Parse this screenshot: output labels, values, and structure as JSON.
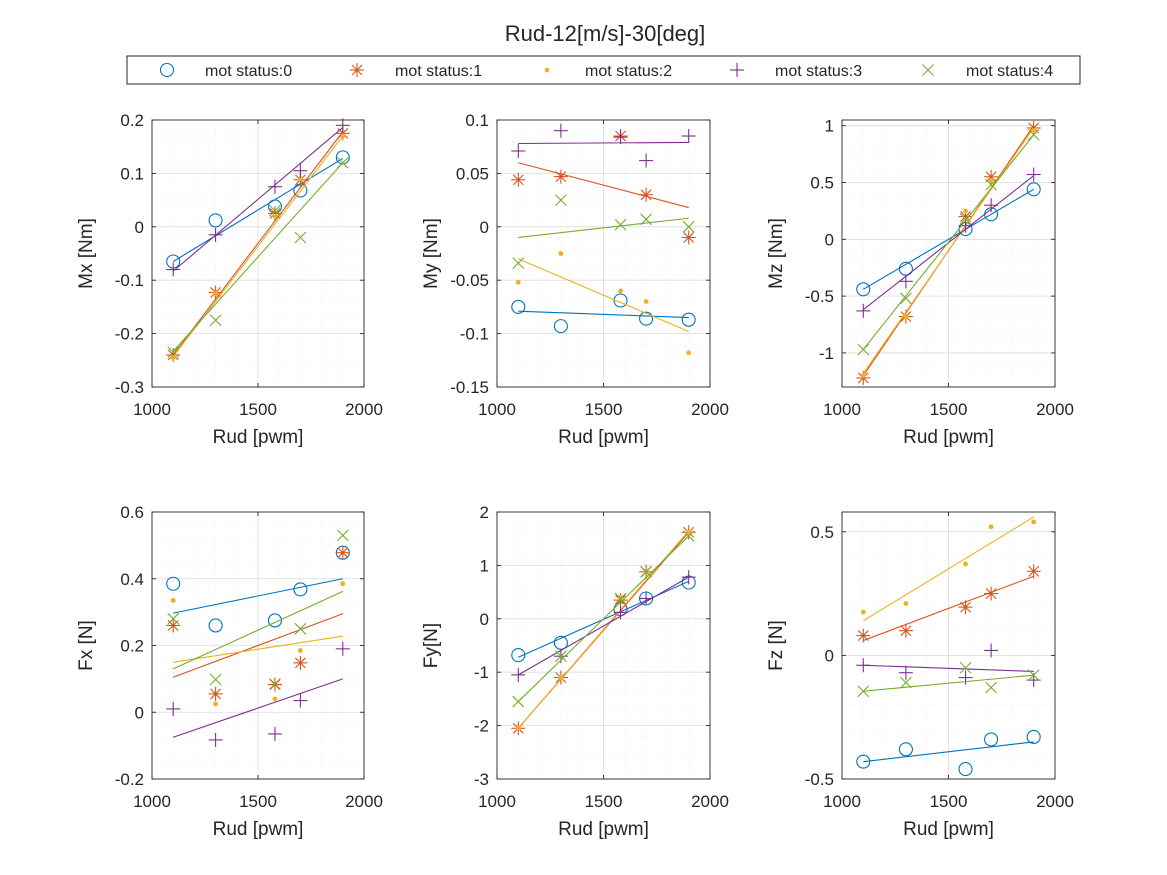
{
  "figure": {
    "title": "Rud-12[m/s]-30[deg]"
  },
  "series_styles": [
    {
      "name": "mot status:0",
      "color": "#0072BD",
      "marker": "circle"
    },
    {
      "name": "mot status:1",
      "color": "#D95319",
      "marker": "asterisk"
    },
    {
      "name": "mot status:2",
      "color": "#EDB120",
      "marker": "dot"
    },
    {
      "name": "mot status:3",
      "color": "#7E2F8E",
      "marker": "plus"
    },
    {
      "name": "mot status:4",
      "color": "#77AC30",
      "marker": "x"
    }
  ],
  "chart_data": [
    {
      "type": "scatter",
      "xlabel": "Rud [pwm]",
      "ylabel": "Mx [Nm]",
      "xlim": [
        1000,
        2000
      ],
      "ylim": [
        -0.3,
        0.2
      ],
      "xticks": [
        1000,
        1500,
        2000
      ],
      "yticks": [
        -0.3,
        -0.2,
        -0.1,
        0,
        0.1,
        0.2
      ],
      "grid": "on, with minor grid",
      "series": [
        {
          "name": "mot status:0",
          "x": [
            1100,
            1300,
            1580,
            1700,
            1900
          ],
          "y": [
            -0.065,
            0.012,
            0.038,
            0.068,
            0.13
          ],
          "fit": [
            [
              1100,
              -0.065
            ],
            [
              1900,
              0.128
            ]
          ]
        },
        {
          "name": "mot status:1",
          "x": [
            1100,
            1300,
            1580,
            1700,
            1900
          ],
          "y": [
            -0.24,
            -0.123,
            0.025,
            0.088,
            0.175
          ],
          "fit": [
            [
              1100,
              -0.24
            ],
            [
              1900,
              0.178
            ]
          ]
        },
        {
          "name": "mot status:2",
          "x": [
            1100,
            1300,
            1580,
            1700,
            1900
          ],
          "y": [
            -0.245,
            -0.125,
            0.02,
            0.09,
            0.17
          ],
          "fit": [
            [
              1100,
              -0.243
            ],
            [
              1900,
              0.17
            ]
          ]
        },
        {
          "name": "mot status:3",
          "x": [
            1100,
            1300,
            1580,
            1700,
            1900
          ],
          "y": [
            -0.08,
            -0.015,
            0.075,
            0.105,
            0.19
          ],
          "fit": [
            [
              1100,
              -0.083
            ],
            [
              1900,
              0.186
            ]
          ]
        },
        {
          "name": "mot status:4",
          "x": [
            1100,
            1300,
            1580,
            1700,
            1900
          ],
          "y": [
            -0.235,
            -0.175,
            0.03,
            -0.02,
            0.12
          ],
          "fit": [
            [
              1100,
              -0.233
            ],
            [
              1900,
              0.12
            ]
          ]
        }
      ]
    },
    {
      "type": "scatter",
      "xlabel": "Rud [pwm]",
      "ylabel": "My [Nm]",
      "xlim": [
        1000,
        2000
      ],
      "ylim": [
        -0.15,
        0.1
      ],
      "xticks": [
        1000,
        1500,
        2000
      ],
      "yticks": [
        -0.15,
        -0.1,
        -0.05,
        0,
        0.05,
        0.1
      ],
      "grid": "on, with minor grid",
      "series": [
        {
          "name": "mot status:0",
          "x": [
            1100,
            1300,
            1580,
            1700,
            1900
          ],
          "y": [
            -0.075,
            -0.093,
            -0.069,
            -0.086,
            -0.087
          ],
          "fit": [
            [
              1100,
              -0.079
            ],
            [
              1900,
              -0.085
            ]
          ]
        },
        {
          "name": "mot status:1",
          "x": [
            1100,
            1300,
            1580,
            1700,
            1900
          ],
          "y": [
            0.044,
            0.047,
            0.085,
            0.03,
            -0.01
          ],
          "fit": [
            [
              1100,
              0.06
            ],
            [
              1900,
              0.018
            ]
          ]
        },
        {
          "name": "mot status:2",
          "x": [
            1100,
            1300,
            1580,
            1700,
            1900
          ],
          "y": [
            -0.052,
            -0.025,
            -0.06,
            -0.07,
            -0.118
          ],
          "fit": [
            [
              1100,
              -0.03
            ],
            [
              1900,
              -0.098
            ]
          ]
        },
        {
          "name": "mot status:3",
          "x": [
            1100,
            1300,
            1580,
            1700,
            1900
          ],
          "y": [
            0.071,
            0.09,
            0.084,
            0.062,
            0.085
          ],
          "fit": [
            [
              1100,
              0.078
            ],
            [
              1900,
              0.079
            ]
          ]
        },
        {
          "name": "mot status:4",
          "x": [
            1100,
            1300,
            1580,
            1700,
            1900
          ],
          "y": [
            -0.034,
            0.025,
            0.002,
            0.007,
            0.0
          ],
          "fit": [
            [
              1100,
              -0.01
            ],
            [
              1900,
              0.008
            ]
          ]
        }
      ]
    },
    {
      "type": "scatter",
      "xlabel": "Rud [pwm]",
      "ylabel": "Mz [Nm]",
      "xlim": [
        1000,
        2000
      ],
      "ylim": [
        -1.3,
        1.05
      ],
      "xticks": [
        1000,
        1500,
        2000
      ],
      "yticks": [
        -1,
        -0.5,
        0,
        0.5,
        1
      ],
      "grid": "on, with minor grid",
      "series": [
        {
          "name": "mot status:0",
          "x": [
            1100,
            1300,
            1580,
            1700,
            1900
          ],
          "y": [
            -0.44,
            -0.26,
            0.09,
            0.22,
            0.44
          ],
          "fit": [
            [
              1100,
              -0.44
            ],
            [
              1900,
              0.44
            ]
          ]
        },
        {
          "name": "mot status:1",
          "x": [
            1100,
            1300,
            1580,
            1700,
            1900
          ],
          "y": [
            -1.22,
            -0.68,
            0.2,
            0.55,
            0.98
          ],
          "fit": [
            [
              1100,
              -1.2
            ],
            [
              1900,
              1.0
            ]
          ]
        },
        {
          "name": "mot status:2",
          "x": [
            1100,
            1300,
            1580,
            1700,
            1900
          ],
          "y": [
            -1.2,
            -0.68,
            0.25,
            0.52,
            0.96
          ],
          "fit": [
            [
              1100,
              -1.18
            ],
            [
              1900,
              0.98
            ]
          ]
        },
        {
          "name": "mot status:3",
          "x": [
            1100,
            1300,
            1580,
            1700,
            1900
          ],
          "y": [
            -0.63,
            -0.37,
            0.12,
            0.3,
            0.57
          ],
          "fit": [
            [
              1100,
              -0.62
            ],
            [
              1900,
              0.56
            ]
          ]
        },
        {
          "name": "mot status:4",
          "x": [
            1100,
            1300,
            1580,
            1700,
            1900
          ],
          "y": [
            -0.97,
            -0.52,
            0.18,
            0.48,
            0.92
          ],
          "fit": [
            [
              1100,
              -0.97
            ],
            [
              1900,
              0.92
            ]
          ]
        }
      ]
    },
    {
      "type": "scatter",
      "xlabel": "Rud [pwm]",
      "ylabel": "Fx [N]",
      "xlim": [
        1000,
        2000
      ],
      "ylim": [
        -0.2,
        0.6
      ],
      "xticks": [
        1000,
        1500,
        2000
      ],
      "yticks": [
        -0.2,
        0,
        0.2,
        0.4,
        0.6
      ],
      "grid": "on, with minor grid",
      "series": [
        {
          "name": "mot status:0",
          "x": [
            1100,
            1300,
            1580,
            1700,
            1900
          ],
          "y": [
            0.385,
            0.26,
            0.275,
            0.368,
            0.478
          ],
          "fit": [
            [
              1100,
              0.297
            ],
            [
              1900,
              0.4
            ]
          ]
        },
        {
          "name": "mot status:1",
          "x": [
            1100,
            1300,
            1580,
            1700,
            1900
          ],
          "y": [
            0.26,
            0.055,
            0.083,
            0.148,
            0.478
          ],
          "fit": [
            [
              1100,
              0.105
            ],
            [
              1900,
              0.295
            ]
          ]
        },
        {
          "name": "mot status:2",
          "x": [
            1100,
            1300,
            1580,
            1700,
            1900
          ],
          "y": [
            0.335,
            0.025,
            0.04,
            0.185,
            0.385
          ],
          "fit": [
            [
              1100,
              0.15
            ],
            [
              1900,
              0.228
            ]
          ]
        },
        {
          "name": "mot status:3",
          "x": [
            1100,
            1300,
            1580,
            1700,
            1900
          ],
          "y": [
            0.01,
            -0.083,
            -0.065,
            0.035,
            0.19
          ],
          "fit": [
            [
              1100,
              -0.075
            ],
            [
              1900,
              0.1
            ]
          ]
        },
        {
          "name": "mot status:4",
          "x": [
            1100,
            1300,
            1580,
            1700,
            1900
          ],
          "y": [
            0.28,
            0.098,
            0.085,
            0.25,
            0.53
          ],
          "fit": [
            [
              1100,
              0.13
            ],
            [
              1900,
              0.362
            ]
          ]
        }
      ]
    },
    {
      "type": "scatter",
      "xlabel": "Rud [pwm]",
      "ylabel": "Fy[N]",
      "xlim": [
        1000,
        2000
      ],
      "ylim": [
        -3,
        2
      ],
      "xticks": [
        1000,
        1500,
        2000
      ],
      "yticks": [
        -3,
        -2,
        -1,
        0,
        1,
        2
      ],
      "grid": "on, with minor grid",
      "series": [
        {
          "name": "mot status:0",
          "x": [
            1100,
            1300,
            1580,
            1700,
            1900
          ],
          "y": [
            -0.68,
            -0.45,
            0.18,
            0.38,
            0.68
          ],
          "fit": [
            [
              1100,
              -0.72
            ],
            [
              1900,
              0.7
            ]
          ]
        },
        {
          "name": "mot status:1",
          "x": [
            1100,
            1300,
            1580,
            1700,
            1900
          ],
          "y": [
            -2.05,
            -1.1,
            0.35,
            0.88,
            1.62
          ],
          "fit": [
            [
              1100,
              -2.05
            ],
            [
              1900,
              1.62
            ]
          ]
        },
        {
          "name": "mot status:2",
          "x": [
            1100,
            1300,
            1580,
            1700,
            1900
          ],
          "y": [
            -2.05,
            -1.1,
            0.4,
            0.9,
            1.62
          ],
          "fit": [
            [
              1100,
              -2.05
            ],
            [
              1900,
              1.65
            ]
          ]
        },
        {
          "name": "mot status:3",
          "x": [
            1100,
            1300,
            1580,
            1700,
            1900
          ],
          "y": [
            -1.05,
            -0.7,
            0.12,
            0.38,
            0.78
          ],
          "fit": [
            [
              1100,
              -1.05
            ],
            [
              1900,
              0.78
            ]
          ]
        },
        {
          "name": "mot status:4",
          "x": [
            1100,
            1300,
            1580,
            1700,
            1900
          ],
          "y": [
            -1.55,
            -0.7,
            0.38,
            0.88,
            1.55
          ],
          "fit": [
            [
              1100,
              -1.55
            ],
            [
              1900,
              1.55
            ]
          ]
        }
      ]
    },
    {
      "type": "scatter",
      "xlabel": "Rud [pwm]",
      "ylabel": "Fz [N]",
      "xlim": [
        1000,
        2000
      ],
      "ylim": [
        -0.5,
        0.58
      ],
      "xticks": [
        1000,
        1500,
        2000
      ],
      "yticks": [
        -0.5,
        0,
        0.5
      ],
      "grid": "on, with minor grid",
      "series": [
        {
          "name": "mot status:0",
          "x": [
            1100,
            1300,
            1580,
            1700,
            1900
          ],
          "y": [
            -0.43,
            -0.38,
            -0.46,
            -0.34,
            -0.33
          ],
          "fit": [
            [
              1100,
              -0.43
            ],
            [
              1900,
              -0.35
            ]
          ]
        },
        {
          "name": "mot status:1",
          "x": [
            1100,
            1300,
            1580,
            1700,
            1900
          ],
          "y": [
            0.08,
            0.1,
            0.195,
            0.25,
            0.34
          ],
          "fit": [
            [
              1100,
              0.06
            ],
            [
              1900,
              0.32
            ]
          ]
        },
        {
          "name": "mot status:2",
          "x": [
            1100,
            1300,
            1580,
            1700,
            1900
          ],
          "y": [
            0.175,
            0.21,
            0.37,
            0.52,
            0.54
          ],
          "fit": [
            [
              1100,
              0.14
            ],
            [
              1900,
              0.56
            ]
          ]
        },
        {
          "name": "mot status:3",
          "x": [
            1100,
            1300,
            1580,
            1700,
            1900
          ],
          "y": [
            -0.04,
            -0.07,
            -0.09,
            0.02,
            -0.1
          ],
          "fit": [
            [
              1100,
              -0.04
            ],
            [
              1900,
              -0.065
            ]
          ]
        },
        {
          "name": "mot status:4",
          "x": [
            1100,
            1300,
            1580,
            1700,
            1900
          ],
          "y": [
            -0.145,
            -0.11,
            -0.05,
            -0.13,
            -0.08
          ],
          "fit": [
            [
              1100,
              -0.145
            ],
            [
              1900,
              -0.08
            ]
          ]
        }
      ]
    }
  ]
}
